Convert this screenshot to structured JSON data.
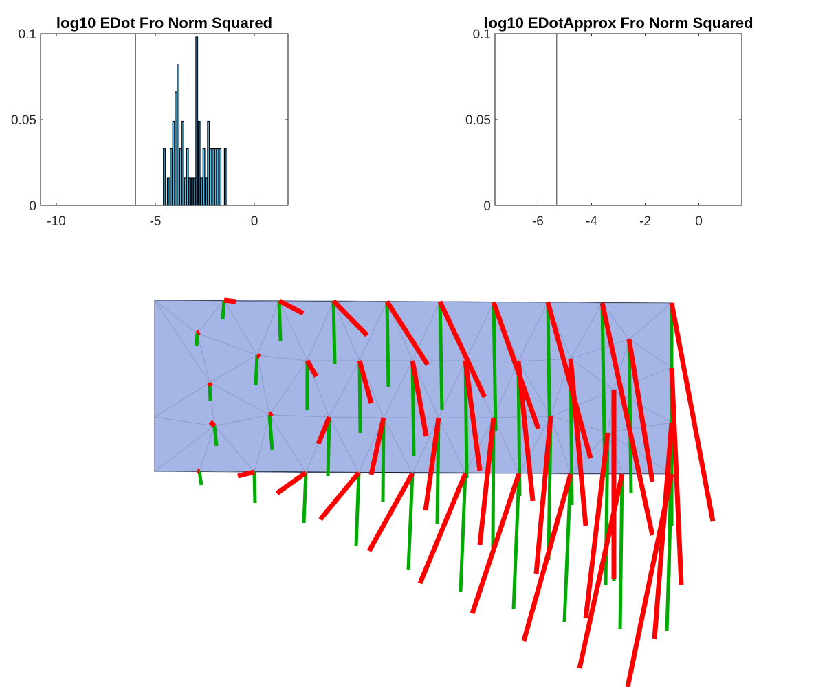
{
  "chart_data": [
    {
      "type": "bar",
      "title": "log10 EDot Fro Norm Squared",
      "xlabel": "",
      "ylabel": "",
      "xlim": [
        -10.8,
        1.7
      ],
      "ylim": [
        0,
        0.1
      ],
      "xticks": [
        -10,
        -5,
        0
      ],
      "xtick_labels": [
        "-10",
        "-5",
        "0"
      ],
      "yticks": [
        0,
        0.05,
        0.1
      ],
      "ytick_labels": [
        "0",
        "0.05",
        "0.1"
      ],
      "reference_line_x": -6,
      "bar_color": "#4DBEEE",
      "bar_edge_color": "#000000",
      "bins": [
        {
          "x": -4.55,
          "value": 0.033
        },
        {
          "x": -4.35,
          "value": 0.016
        },
        {
          "x": -4.2,
          "value": 0.033
        },
        {
          "x": -4.08,
          "value": 0.049
        },
        {
          "x": -3.96,
          "value": 0.066
        },
        {
          "x": -3.85,
          "value": 0.082
        },
        {
          "x": -3.73,
          "value": 0.033
        },
        {
          "x": -3.61,
          "value": 0.049
        },
        {
          "x": -3.49,
          "value": 0.016
        },
        {
          "x": -3.38,
          "value": 0.033
        },
        {
          "x": -3.26,
          "value": 0.016
        },
        {
          "x": -3.14,
          "value": 0.016
        },
        {
          "x": -3.02,
          "value": 0.016
        },
        {
          "x": -2.91,
          "value": 0.098
        },
        {
          "x": -2.79,
          "value": 0.049
        },
        {
          "x": -2.67,
          "value": 0.016
        },
        {
          "x": -2.55,
          "value": 0.033
        },
        {
          "x": -2.43,
          "value": 0.016
        },
        {
          "x": -2.32,
          "value": 0.049
        },
        {
          "x": -2.2,
          "value": 0.033
        },
        {
          "x": -2.08,
          "value": 0.033
        },
        {
          "x": -1.96,
          "value": 0.033
        },
        {
          "x": -1.85,
          "value": 0.033
        },
        {
          "x": -1.73,
          "value": 0.033
        },
        {
          "x": -1.47,
          "value": 0.033
        }
      ]
    },
    {
      "type": "bar",
      "title": "log10 EDotApprox Fro Norm Squared",
      "xlabel": "",
      "ylabel": "",
      "xlim": [
        -7.6,
        1.6
      ],
      "ylim": [
        0,
        0.1
      ],
      "xticks": [
        -6,
        -4,
        -2,
        0
      ],
      "xtick_labels": [
        "-6",
        "-4",
        "-2",
        "0"
      ],
      "yticks": [
        0,
        0.05,
        0.1
      ],
      "ytick_labels": [
        "0",
        "0.05",
        "0.1"
      ],
      "reference_line_x": -5.3,
      "bins": []
    }
  ],
  "mesh": {
    "fill_color": "#A5B6E6",
    "edge_color": "#8C9CCB",
    "green_color": "#00AA00",
    "red_color": "#FF0000"
  }
}
